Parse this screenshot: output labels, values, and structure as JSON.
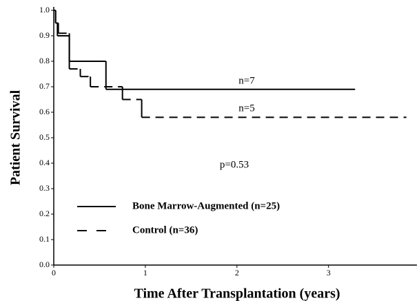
{
  "chart_data": {
    "type": "step",
    "xlabel": "Time After Transplantation (years)",
    "ylabel": "Patient Survival",
    "annotations": [
      "n=7",
      "n=5",
      "p=0.53"
    ],
    "xlim": [
      0,
      3.95
    ],
    "xticks": [
      0,
      1,
      2,
      3
    ],
    "ylim": [
      0,
      1
    ],
    "yticks": [
      {
        "value": 0,
        "label": "0.0"
      },
      0.1,
      0.2,
      0.3,
      0.4,
      0.5,
      0.6,
      0.7,
      0.8,
      0.9,
      {
        "value": 1,
        "label": "1.0"
      }
    ],
    "legend": "lower left",
    "series": [
      {
        "name": "Bone Marrow-Augmented (n=25)",
        "color": "#000000",
        "line_style": "solid",
        "x": [
          0,
          0.02,
          0.04,
          0.17,
          0.57,
          3.29
        ],
        "values": [
          1.0,
          0.95,
          0.9,
          0.8,
          0.69,
          0.69
        ]
      },
      {
        "name": "Control (n=36)",
        "color": "#000000",
        "line_style": "dashed",
        "x": [
          0,
          0.02,
          0.05,
          0.17,
          0.29,
          0.4,
          0.75,
          0.96,
          3.85
        ],
        "values": [
          1.0,
          0.95,
          0.91,
          0.77,
          0.74,
          0.7,
          0.65,
          0.58,
          0.58
        ]
      }
    ]
  }
}
